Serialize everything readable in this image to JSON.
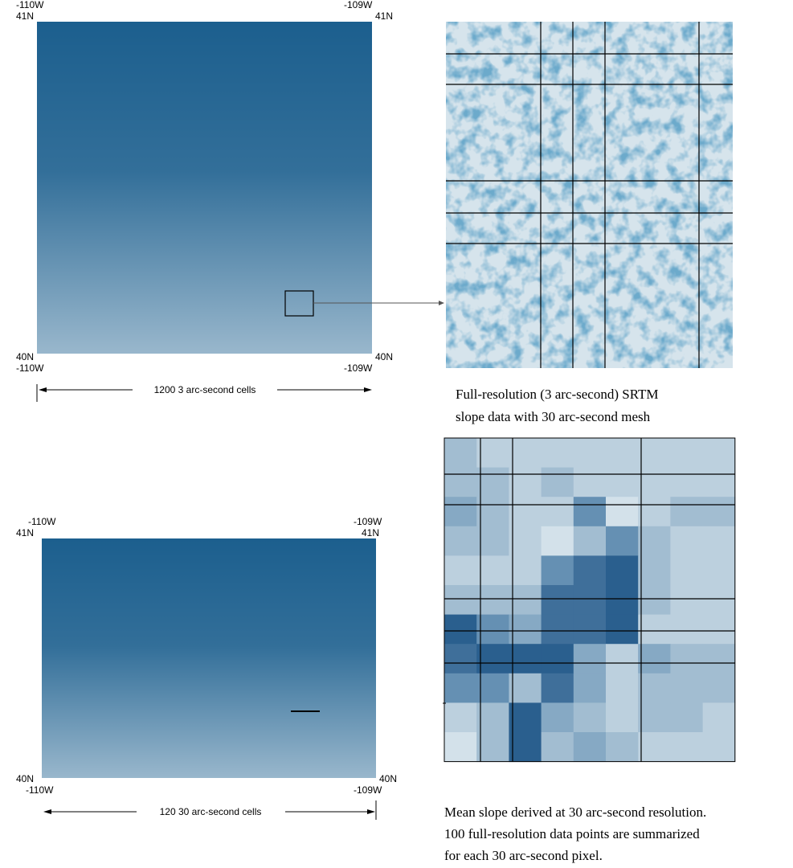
{
  "panels": [
    {
      "top_left_lon": "-110W",
      "top_left_lat": "41N",
      "top_right_lon": "-109W",
      "top_right_lat": "41N",
      "bottom_left_lat": "40N",
      "bottom_left_lon": "-110W",
      "bottom_right_lat": "40N",
      "bottom_right_lon": "-109W",
      "scale_label": "1200 3 arc-second cells"
    },
    {
      "top_left_lon": "-110W",
      "top_left_lat": "41N",
      "top_right_lon": "-109W",
      "top_right_lat": "41N",
      "bottom_left_lat": "40N",
      "bottom_left_lon": "-110W",
      "bottom_right_lat": "40N",
      "bottom_right_lon": "-109W",
      "scale_label": "120 30 arc-second cells"
    }
  ],
  "captions": [
    [
      "Full-resolution (3 arc-second) SRTM",
      "slope data with 30 arc-second mesh"
    ],
    [
      "Mean slope derived at 30 arc-second resolution.",
      "100 full-resolution data points are summarized",
      "for each 30 arc-second pixel."
    ]
  ]
}
